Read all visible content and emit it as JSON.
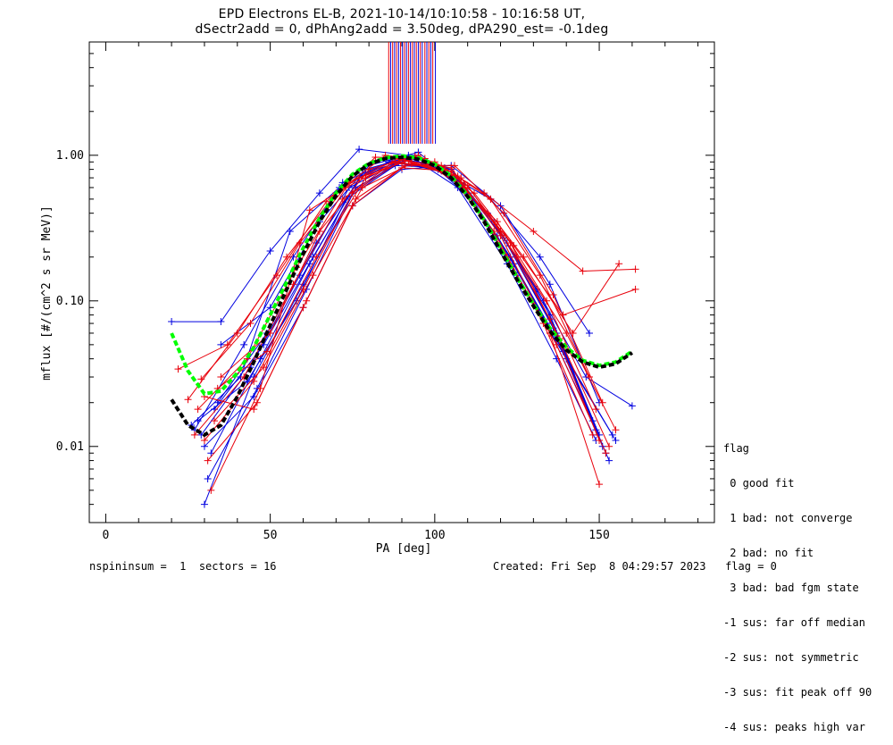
{
  "header": {
    "title_line1": "EPD Electrons EL-B, 2021-10-14/10:10:58 - 10:16:58 UT,",
    "title_line2": "dSectr2add = 0, dPhAng2add = 3.50deg, dPA290_est=  -0.1deg"
  },
  "legend": {
    "heading": "flag",
    "items": [
      " 0 good fit",
      " 1 bad: not converge",
      " 2 bad: no fit",
      " 3 bad: bad fgm state",
      "-1 sus: far off median",
      "-2 sus: not symmetric",
      "-3 sus: fit peak off 90",
      "-4 sus: peaks high var"
    ]
  },
  "footer": {
    "left": "nspininsum =  1  sectors = 16",
    "right": "Created: Fri Sep  8 04:29:57 2023   flag = 0"
  },
  "colors": {
    "red_series": "#e8000b",
    "blue_series": "#0000e0",
    "green_fit": "#00ff00",
    "black_fit": "#000000"
  },
  "chart_data": {
    "type": "line",
    "xlabel": "PA [deg]",
    "ylabel": "mflux [#/(cm^2 s sr MeV)]",
    "xlim": [
      -5,
      185
    ],
    "ylim": [
      0.003,
      6
    ],
    "yscale": "log",
    "xticks": [
      0,
      50,
      100,
      150
    ],
    "yticks": [
      0.01,
      0.1,
      1.0
    ],
    "ytick_labels": [
      "0.01",
      "0.10",
      "1.00"
    ],
    "grid": false,
    "fits": [
      {
        "color": "green",
        "x": [
          20,
          25,
          30,
          35,
          40,
          45,
          50,
          55,
          60,
          65,
          70,
          75,
          80,
          85,
          90,
          95,
          100,
          105,
          110,
          115,
          120,
          125,
          130,
          135,
          140,
          145,
          150,
          155,
          160
        ],
        "y": [
          0.06,
          0.033,
          0.023,
          0.024,
          0.032,
          0.048,
          0.08,
          0.135,
          0.23,
          0.37,
          0.55,
          0.74,
          0.88,
          0.96,
          0.99,
          0.96,
          0.87,
          0.72,
          0.53,
          0.36,
          0.23,
          0.145,
          0.095,
          0.065,
          0.048,
          0.039,
          0.036,
          0.038,
          0.045
        ]
      },
      {
        "color": "black",
        "x": [
          20,
          25,
          30,
          35,
          40,
          45,
          50,
          55,
          60,
          65,
          70,
          75,
          80,
          85,
          90,
          95,
          100,
          105,
          110,
          115,
          120,
          125,
          130,
          135,
          140,
          145,
          150,
          155,
          160
        ],
        "y": [
          0.021,
          0.014,
          0.012,
          0.014,
          0.022,
          0.038,
          0.068,
          0.12,
          0.21,
          0.35,
          0.53,
          0.72,
          0.87,
          0.95,
          0.97,
          0.94,
          0.85,
          0.7,
          0.52,
          0.35,
          0.22,
          0.14,
          0.092,
          0.062,
          0.046,
          0.038,
          0.035,
          0.037,
          0.044
        ]
      }
    ],
    "series": [
      {
        "name": "",
        "color": "blue",
        "x": [
          20,
          35,
          50,
          65,
          77,
          92,
          107,
          122,
          137,
          149
        ],
        "y": [
          0.072,
          0.072,
          0.22,
          0.55,
          1.1,
          1.0,
          0.6,
          0.18,
          0.04,
          0.011
        ]
      },
      {
        "name": "",
        "color": "blue",
        "x": [
          26,
          41,
          56,
          71,
          86,
          101,
          116,
          131,
          146,
          160
        ],
        "y": [
          0.014,
          0.03,
          0.3,
          0.6,
          0.9,
          0.8,
          0.4,
          0.12,
          0.03,
          0.019
        ]
      },
      {
        "name": "",
        "color": "blue",
        "x": [
          30,
          45,
          60,
          75,
          90,
          105,
          120,
          135,
          150
        ],
        "y": [
          0.004,
          0.03,
          0.13,
          0.55,
          0.95,
          0.8,
          0.3,
          0.08,
          0.012
        ]
      },
      {
        "name": "",
        "color": "blue",
        "x": [
          32,
          47,
          62,
          77,
          92,
          107,
          122,
          137,
          152
        ],
        "y": [
          0.009,
          0.04,
          0.18,
          0.7,
          0.97,
          0.7,
          0.25,
          0.06,
          0.009
        ]
      },
      {
        "name": "",
        "color": "blue",
        "x": [
          29,
          44,
          59,
          74,
          89,
          104,
          119,
          134,
          149
        ],
        "y": [
          0.012,
          0.035,
          0.15,
          0.6,
          0.9,
          0.75,
          0.28,
          0.07,
          0.013
        ]
      },
      {
        "name": "",
        "color": "blue",
        "x": [
          33,
          48,
          63,
          78,
          93,
          108,
          123,
          138,
          153
        ],
        "y": [
          0.018,
          0.05,
          0.2,
          0.75,
          0.95,
          0.65,
          0.2,
          0.05,
          0.008
        ]
      },
      {
        "name": "",
        "color": "blue",
        "x": [
          28,
          43,
          58,
          73,
          88,
          103,
          118,
          133,
          148
        ],
        "y": [
          0.015,
          0.028,
          0.1,
          0.5,
          0.85,
          0.82,
          0.35,
          0.1,
          0.015
        ]
      },
      {
        "name": "",
        "color": "blue",
        "x": [
          31,
          46,
          61,
          76,
          91,
          106,
          121,
          136,
          151
        ],
        "y": [
          0.006,
          0.025,
          0.12,
          0.6,
          0.92,
          0.72,
          0.27,
          0.065,
          0.01
        ]
      },
      {
        "name": "",
        "color": "blue",
        "x": [
          34,
          49,
          64,
          79,
          94,
          109,
          124,
          139,
          154
        ],
        "y": [
          0.02,
          0.06,
          0.25,
          0.8,
          1.0,
          0.6,
          0.18,
          0.045,
          0.012
        ]
      },
      {
        "name": "",
        "color": "blue",
        "x": [
          30,
          45,
          60,
          75,
          90,
          105,
          120,
          135,
          150
        ],
        "y": [
          0.01,
          0.022,
          0.09,
          0.45,
          0.8,
          0.85,
          0.45,
          0.13,
          0.02
        ]
      },
      {
        "name": "",
        "color": "blue",
        "x": [
          35,
          50,
          65,
          80,
          95,
          110,
          125,
          140,
          155
        ],
        "y": [
          0.05,
          0.09,
          0.35,
          0.85,
          1.05,
          0.55,
          0.15,
          0.04,
          0.011
        ]
      },
      {
        "name": "",
        "color": "blue",
        "x": [
          27,
          42,
          57,
          72,
          87,
          102,
          117,
          132,
          147
        ],
        "y": [
          0.013,
          0.05,
          0.2,
          0.65,
          0.92,
          0.78,
          0.5,
          0.2,
          0.06
        ]
      },
      {
        "name": "",
        "color": "red",
        "x": [
          22,
          37,
          52,
          67,
          82,
          97,
          112,
          127,
          142,
          156
        ],
        "y": [
          0.034,
          0.05,
          0.15,
          0.48,
          0.97,
          0.95,
          0.55,
          0.2,
          0.06,
          0.18
        ]
      },
      {
        "name": "",
        "color": "red",
        "x": [
          25,
          40,
          55,
          70,
          85,
          100,
          115,
          130,
          145,
          161
        ],
        "y": [
          0.021,
          0.06,
          0.2,
          0.55,
          1.0,
          0.9,
          0.55,
          0.3,
          0.16,
          0.165
        ]
      },
      {
        "name": "",
        "color": "red",
        "x": [
          28,
          43,
          58,
          73,
          88,
          103,
          118,
          133,
          148
        ],
        "y": [
          0.018,
          0.04,
          0.17,
          0.6,
          0.9,
          0.8,
          0.3,
          0.07,
          0.012
        ]
      },
      {
        "name": "",
        "color": "red",
        "x": [
          30,
          45,
          60,
          75,
          90,
          105,
          120,
          135,
          150
        ],
        "y": [
          0.011,
          0.028,
          0.12,
          0.55,
          0.93,
          0.82,
          0.28,
          0.06,
          0.0055
        ]
      },
      {
        "name": "",
        "color": "red",
        "x": [
          32,
          47,
          62,
          77,
          92,
          107,
          122,
          137,
          152
        ],
        "y": [
          0.005,
          0.025,
          0.42,
          0.7,
          0.92,
          0.72,
          0.2,
          0.05,
          0.009
        ]
      },
      {
        "name": "",
        "color": "red",
        "x": [
          29,
          44,
          59,
          74,
          89,
          104,
          119,
          134,
          149
        ],
        "y": [
          0.029,
          0.07,
          0.25,
          0.65,
          0.95,
          0.75,
          0.35,
          0.1,
          0.018
        ]
      },
      {
        "name": "",
        "color": "red",
        "x": [
          33,
          48,
          63,
          78,
          93,
          108,
          123,
          138,
          153
        ],
        "y": [
          0.015,
          0.035,
          0.15,
          0.6,
          0.88,
          0.7,
          0.25,
          0.055,
          0.01
        ]
      },
      {
        "name": "",
        "color": "red",
        "x": [
          31,
          46,
          61,
          76,
          91,
          106,
          121,
          136,
          151
        ],
        "y": [
          0.008,
          0.02,
          0.1,
          0.5,
          0.85,
          0.85,
          0.4,
          0.11,
          0.02
        ]
      },
      {
        "name": "",
        "color": "red",
        "x": [
          34,
          49,
          64,
          79,
          94,
          109,
          124,
          139,
          161
        ],
        "y": [
          0.025,
          0.045,
          0.2,
          0.7,
          0.98,
          0.6,
          0.24,
          0.08,
          0.12
        ]
      },
      {
        "name": "",
        "color": "red",
        "x": [
          27,
          42,
          57,
          72,
          87,
          102,
          117,
          132,
          147
        ],
        "y": [
          0.012,
          0.03,
          0.13,
          0.5,
          0.88,
          0.85,
          0.5,
          0.15,
          0.03
        ]
      },
      {
        "name": "",
        "color": "red",
        "x": [
          30,
          45,
          60,
          75,
          90,
          105,
          120,
          135,
          150
        ],
        "y": [
          0.022,
          0.018,
          0.09,
          0.45,
          0.82,
          0.78,
          0.3,
          0.075,
          0.011
        ]
      },
      {
        "name": "",
        "color": "red",
        "x": [
          35,
          50,
          65,
          80,
          95,
          110,
          125,
          140,
          155
        ],
        "y": [
          0.03,
          0.06,
          0.3,
          0.8,
          1.0,
          0.62,
          0.2,
          0.06,
          0.013
        ]
      }
    ],
    "peak_lines": [
      {
        "color": "red",
        "x": [
          86,
          87.2,
          88.4,
          89.6,
          90.8,
          92,
          93.2,
          94.4,
          95.6,
          97,
          98.2,
          99.4
        ]
      },
      {
        "color": "blue",
        "x": [
          86.6,
          87.8,
          89,
          90.2,
          91.4,
          92.6,
          93.8,
          95,
          96.2,
          97.6,
          98.8,
          100.2
        ]
      }
    ]
  }
}
